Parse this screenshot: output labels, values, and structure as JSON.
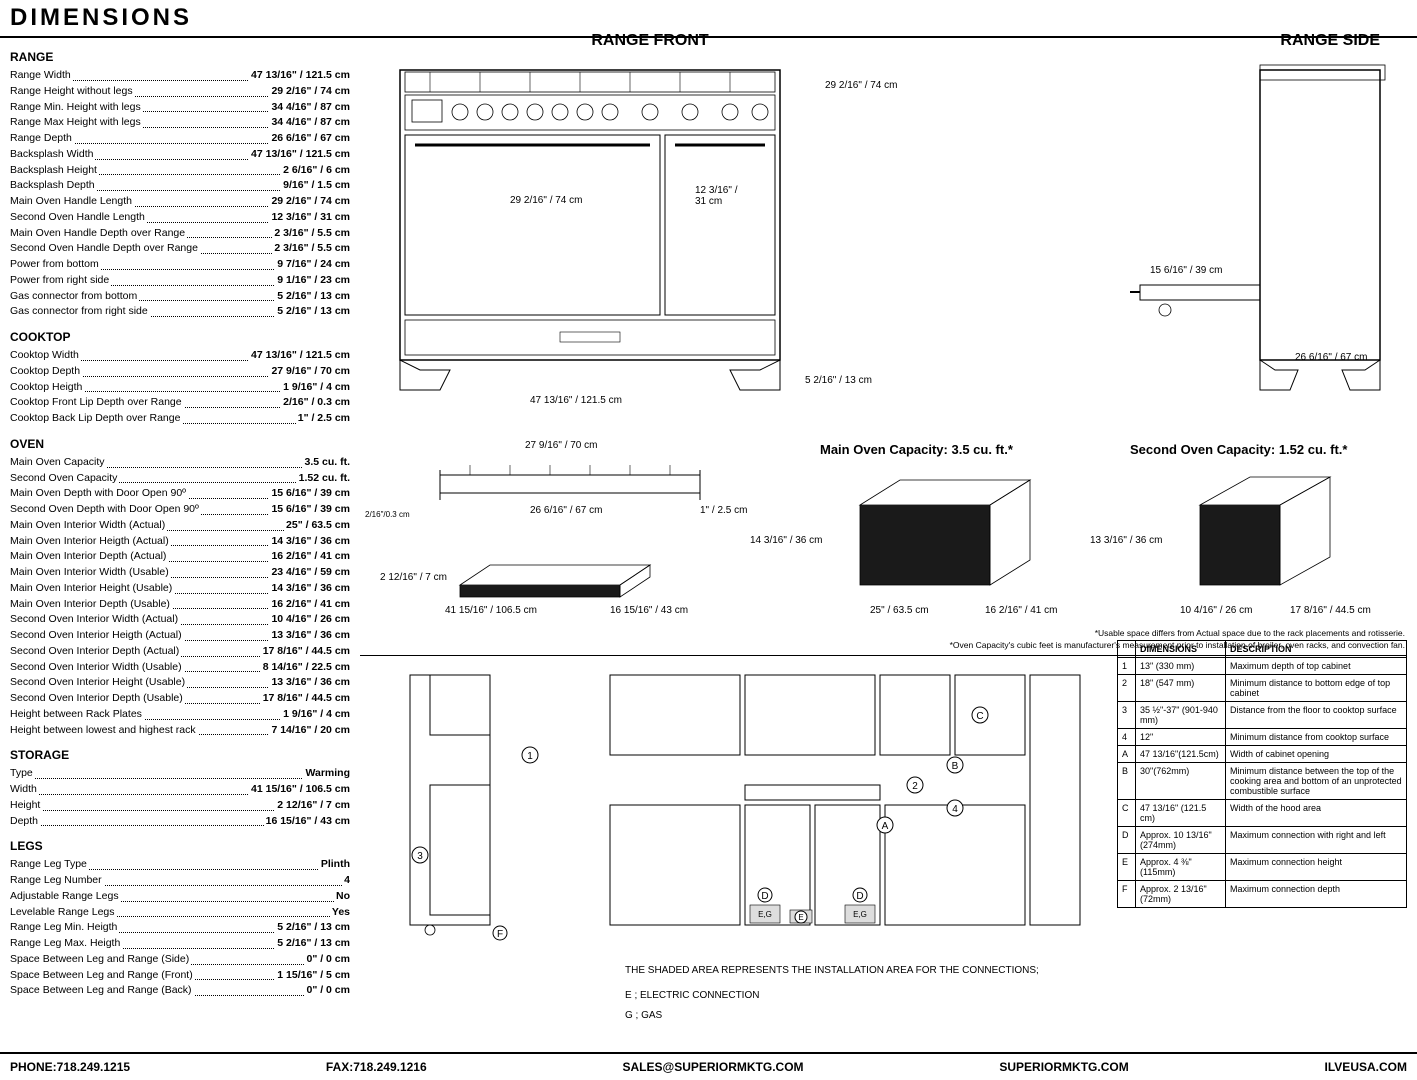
{
  "title": "DIMENSIONS",
  "sections": {
    "range": {
      "heading": "RANGE",
      "rows": [
        {
          "label": "Range Width",
          "value": "47 13/16\" / 121.5 cm"
        },
        {
          "label": "Range Height without legs",
          "value": "29 2/16\" / 74 cm"
        },
        {
          "label": "Range Min. Height with legs",
          "value": "34 4/16\" / 87 cm"
        },
        {
          "label": "Range Max Height with legs",
          "value": "34 4/16\" / 87 cm"
        },
        {
          "label": "Range Depth",
          "value": "26 6/16\" / 67 cm"
        },
        {
          "label": "Backsplash Width",
          "value": "47 13/16\" / 121.5 cm"
        },
        {
          "label": "Backsplash Height",
          "value": "2 6/16\" / 6 cm"
        },
        {
          "label": "Backsplash Depth",
          "value": "9/16\" / 1.5 cm"
        },
        {
          "label": "Main Oven Handle Length",
          "value": "29 2/16\" / 74 cm"
        },
        {
          "label": "Second Oven Handle Length",
          "value": "12 3/16\" / 31 cm"
        },
        {
          "label": "Main Oven Handle Depth over Range",
          "value": "2 3/16\" / 5.5 cm"
        },
        {
          "label": "Second Oven Handle Depth over Range",
          "value": "2 3/16\" / 5.5 cm"
        },
        {
          "label": "Power from bottom",
          "value": "9 7/16\" / 24 cm"
        },
        {
          "label": "Power from right side",
          "value": "9 1/16\" / 23 cm"
        },
        {
          "label": "Gas connector from bottom",
          "value": "5 2/16\" / 13 cm"
        },
        {
          "label": "Gas connector from right side",
          "value": "5 2/16\" / 13 cm"
        }
      ]
    },
    "cooktop": {
      "heading": "COOKTOP",
      "rows": [
        {
          "label": "Cooktop Width",
          "value": "47 13/16\" / 121.5 cm"
        },
        {
          "label": "Cooktop Depth",
          "value": "27 9/16\" / 70 cm"
        },
        {
          "label": "Cooktop Heigth",
          "value": "1 9/16\" / 4 cm"
        },
        {
          "label": "Cooktop Front Lip Depth over Range",
          "value": "2/16\" / 0.3 cm"
        },
        {
          "label": "Cooktop Back Lip Depth over Range",
          "value": "1\" / 2.5 cm"
        }
      ]
    },
    "oven": {
      "heading": "OVEN",
      "rows": [
        {
          "label": "Main Oven Capacity",
          "value": "3.5 cu. ft."
        },
        {
          "label": "Second Oven Capacity",
          "value": "1.52 cu. ft."
        },
        {
          "label": "Main Oven Depth with Door Open 90º",
          "value": "15 6/16\" / 39 cm"
        },
        {
          "label": "Second Oven Depth with Door Open 90º",
          "value": "15 6/16\" / 39 cm"
        },
        {
          "label": "Main Oven Interior Width (Actual)",
          "value": "25\" / 63.5 cm"
        },
        {
          "label": "Main Oven Interior Heigth (Actual)",
          "value": "14 3/16\" / 36 cm"
        },
        {
          "label": "Main Oven Interior Depth (Actual)",
          "value": "16 2/16\" / 41 cm"
        },
        {
          "label": "Main Oven Interior Width (Usable)",
          "value": "23 4/16\" / 59 cm"
        },
        {
          "label": "Main Oven Interior Height (Usable)",
          "value": "14 3/16\" / 36 cm"
        },
        {
          "label": "Main Oven Interior Depth (Usable)",
          "value": "16 2/16\" / 41 cm"
        },
        {
          "label": "Second Oven Interior Width (Actual)",
          "value": "10 4/16\" / 26 cm"
        },
        {
          "label": "Second Oven Interior Heigth (Actual)",
          "value": "13 3/16\" / 36 cm"
        },
        {
          "label": "Second Oven Interior Depth (Actual)",
          "value": "17 8/16\" / 44.5 cm"
        },
        {
          "label": "Second Oven Interior Width (Usable)",
          "value": "8 14/16\" / 22.5 cm"
        },
        {
          "label": "Second Oven Interior Height (Usable)",
          "value": "13 3/16\" / 36 cm"
        },
        {
          "label": "Second Oven Interior Depth (Usable)",
          "value": "17 8/16\" / 44.5 cm"
        },
        {
          "label": "Height between Rack Plates",
          "value": "1 9/16\" / 4 cm"
        },
        {
          "label": "Height between lowest and highest rack",
          "value": "7 14/16\" / 20 cm"
        }
      ]
    },
    "storage": {
      "heading": "STORAGE",
      "rows": [
        {
          "label": "Type",
          "value": "Warming"
        },
        {
          "label": "Width",
          "value": "41 15/16\" / 106.5 cm"
        },
        {
          "label": "Height",
          "value": "2 12/16\" / 7 cm"
        },
        {
          "label": "Depth",
          "value": "16 15/16\" / 43 cm"
        }
      ]
    },
    "legs": {
      "heading": "LEGS",
      "rows": [
        {
          "label": "Range Leg Type",
          "value": "Plinth"
        },
        {
          "label": "Range Leg Number",
          "value": "4"
        },
        {
          "label": "Adjustable Range Legs",
          "value": "No"
        },
        {
          "label": "Levelable Range Legs",
          "value": "Yes"
        },
        {
          "label": "Range Leg Min. Heigth",
          "value": "5 2/16\" / 13 cm"
        },
        {
          "label": "Range Leg Max. Heigth",
          "value": "5 2/16\" / 13 cm"
        },
        {
          "label": "Space Between Leg and Range (Side)",
          "value": "0\" / 0 cm"
        },
        {
          "label": "Space Between Leg and Range (Front)",
          "value": "1 15/16\" / 5 cm"
        },
        {
          "label": "Space Between Leg and Range (Back)",
          "value": "0\" / 0 cm"
        }
      ]
    }
  },
  "diagrams": {
    "front_title": "RANGE FRONT",
    "side_title": "RANGE SIDE",
    "front_height": "29 2/16\" / 74 cm",
    "front_width": "47 13/16\" / 121.5 cm",
    "main_handle": "29 2/16\" / 74 cm",
    "second_handle": "12 3/16\" / 31 cm",
    "leg_height": "5 2/16\" / 13 cm",
    "side_depth": "26 6/16\" / 67 cm",
    "door_open": "15 6/16\" / 39 cm",
    "cooktop_depth_label": "27 9/16\" / 70 cm",
    "cooktop_inner": "26 6/16\" / 67 cm",
    "cooktop_lip_back": "1\" / 2.5 cm",
    "cooktop_lip_front": "2/16\"/0.3 cm",
    "storage_width": "41 15/16\" / 106.5 cm",
    "storage_depth": "16 15/16\" / 43 cm",
    "storage_height": "2 12/16\" / 7 cm",
    "main_cap_title": "Main Oven Capacity: 3.5 cu. ft.*",
    "second_cap_title": "Second Oven Capacity: 1.52 cu. ft.*",
    "main_w": "25\" / 63.5 cm",
    "main_h": "14 3/16\" / 36 cm",
    "main_d": "16 2/16\" / 41 cm",
    "second_w": "10 4/16\" / 26 cm",
    "second_h": "13 3/16\" / 36 cm",
    "second_d": "17 8/16\" / 44.5 cm",
    "note1": "*Usable space differs from Actual space due to the rack placements and rotisserie.",
    "note2": "*Oven Capacity's cubic feet is manufacturer's measurement prior to installation of broiler, oven racks, and convection fan.",
    "install_note1": "THE SHADED AREA REPRESENTS THE INSTALLATION AREA FOR THE CONNECTIONS;",
    "install_note2": "E ; ELECTRIC CONNECTION",
    "install_note3": "G ; GAS"
  },
  "install_table": {
    "header1": "DIMENSIONS",
    "header2": "DESCRIPTION",
    "rows": [
      {
        "k": "1",
        "d": "13\" (330 mm)",
        "desc": "Maximum depth of top cabinet"
      },
      {
        "k": "2",
        "d": "18\" (547 mm)",
        "desc": "Minimum distance to bottom edge of top cabinet"
      },
      {
        "k": "3",
        "d": "35 ½\"-37\" (901-940 mm)",
        "desc": "Distance from the floor to cooktop surface"
      },
      {
        "k": "4",
        "d": "12\"",
        "desc": "Minimum distance from cooktop surface"
      },
      {
        "k": "A",
        "d": "47 13/16\"(121.5cm)",
        "desc": "Width of cabinet opening"
      },
      {
        "k": "B",
        "d": "30\"(762mm)",
        "desc": "Minimum distance between the top of the cooking area and bottom of an unprotected combustible surface"
      },
      {
        "k": "C",
        "d": "47 13/16\" (121.5 cm)",
        "desc": "Width of the hood area"
      },
      {
        "k": "D",
        "d": "Approx. 10 13/16\" (274mm)",
        "desc": "Maximum connection with right and left"
      },
      {
        "k": "E",
        "d": "Approx. 4 ⅜\" (115mm)",
        "desc": "Maximum connection height"
      },
      {
        "k": "F",
        "d": "Approx. 2 13/16\" (72mm)",
        "desc": "Maximum connection depth"
      }
    ]
  },
  "footer": {
    "phone": "PHONE:718.249.1215",
    "fax": "FAX:718.249.1216",
    "email": "SALES@SUPERIORMKTG.COM",
    "site1": "SUPERIORMKTG.COM",
    "site2": "ILVEUSA.COM"
  },
  "colors": {
    "line": "#000000",
    "fill_dark": "#1a1a1a",
    "bg": "#ffffff"
  }
}
